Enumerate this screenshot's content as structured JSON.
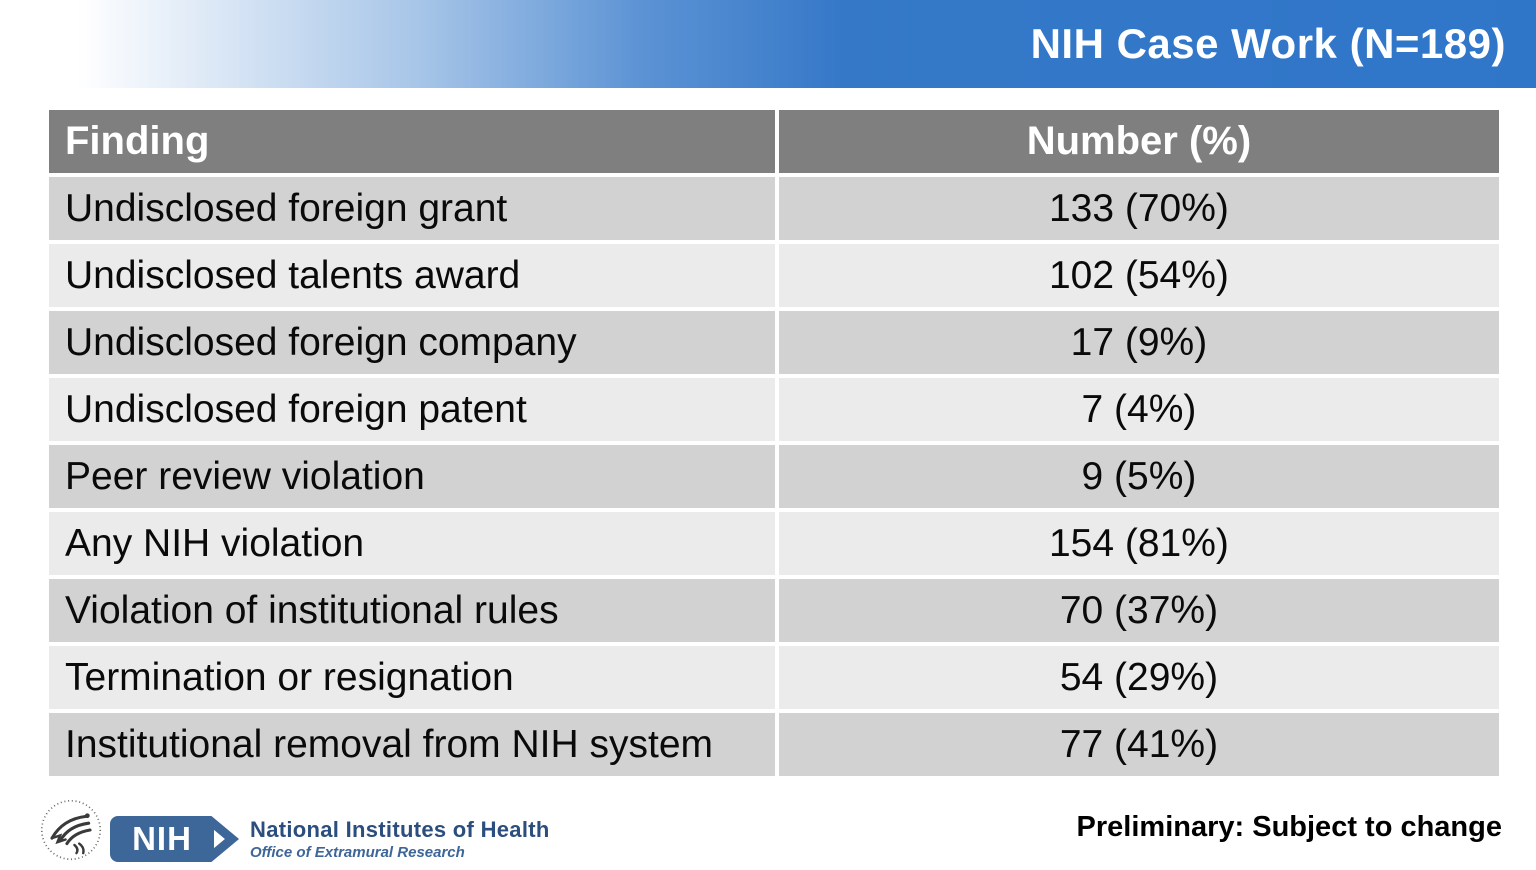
{
  "slide": {
    "title": "NIH Case Work (N=189)"
  },
  "table": {
    "columns": [
      "Finding",
      "Number (%)"
    ],
    "rows": [
      {
        "finding": "Undisclosed foreign grant",
        "number": "133 (70%)"
      },
      {
        "finding": "Undisclosed talents award",
        "number": "102 (54%)"
      },
      {
        "finding": "Undisclosed foreign company",
        "number": "17 (9%)"
      },
      {
        "finding": "Undisclosed foreign patent",
        "number": "7 (4%)"
      },
      {
        "finding": "Peer review violation",
        "number": "9 (5%)"
      },
      {
        "finding": "Any NIH violation",
        "number": "154 (81%)"
      },
      {
        "finding": "Violation of institutional rules",
        "number": "70 (37%)"
      },
      {
        "finding": "Termination or resignation",
        "number": "54 (29%)"
      },
      {
        "finding": "Institutional removal from NIH system",
        "number": "77 (41%)"
      }
    ]
  },
  "footer": {
    "hhs_logo_name": "hhs-eagle-seal",
    "nih_acronym": "NIH",
    "nih_name": "National Institutes of Health",
    "nih_office": "Office of Extramural Research",
    "note": "Preliminary: Subject to change"
  },
  "colors": {
    "band_blue": "#3578c8",
    "table_header_gray": "#7f7f7f",
    "row_dark": "#d2d2d2",
    "row_light": "#ebebeb",
    "nih_logo_blue": "#3d6699",
    "nih_name_navy": "#2b4e7e",
    "text_black": "#0a0a0a"
  }
}
